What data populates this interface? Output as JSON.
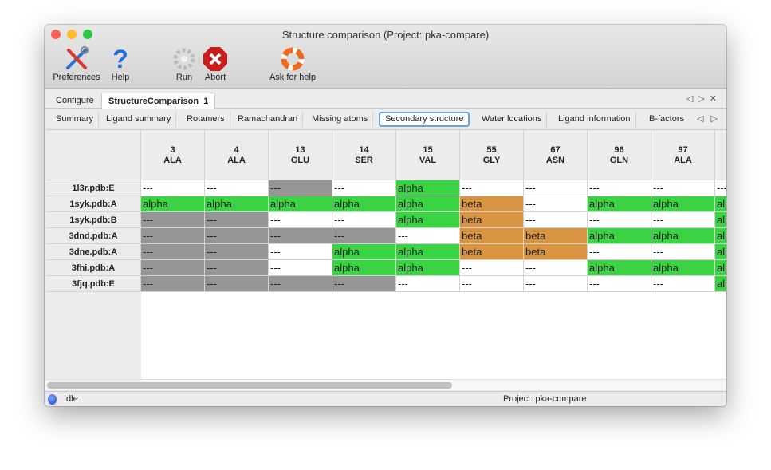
{
  "window": {
    "title": "Structure comparison (Project: pka-compare)"
  },
  "toolbar": {
    "preferences": "Preferences",
    "help": "Help",
    "run": "Run",
    "abort": "Abort",
    "ask_help": "Ask for help"
  },
  "tabs": [
    "Configure",
    "StructureComparison_1"
  ],
  "active_tab": "StructureComparison_1",
  "subtabs": [
    "Summary",
    "Ligand summary",
    "Rotamers",
    "Ramachandran",
    "Missing atoms",
    "Secondary structure",
    "Water locations",
    "Ligand information",
    "B-factors"
  ],
  "active_subtab": "Secondary structure",
  "colors": {
    "alpha": "#3ad344",
    "beta": "#d99441",
    "missing": "#959595",
    "blank": "#ffffff"
  },
  "table": {
    "columns": [
      {
        "num": "3",
        "res": "ALA"
      },
      {
        "num": "4",
        "res": "ALA"
      },
      {
        "num": "13",
        "res": "GLU"
      },
      {
        "num": "14",
        "res": "SER"
      },
      {
        "num": "15",
        "res": "VAL"
      },
      {
        "num": "55",
        "res": "GLY"
      },
      {
        "num": "67",
        "res": "ASN"
      },
      {
        "num": "96",
        "res": "GLN"
      },
      {
        "num": "97",
        "res": "ALA"
      },
      {
        "num": "",
        "res": ""
      }
    ],
    "rows": [
      {
        "label": "1l3r.pdb:E",
        "cells": [
          [
            "---",
            "blank"
          ],
          [
            "---",
            "blank"
          ],
          [
            "---",
            "missing"
          ],
          [
            "---",
            "blank"
          ],
          [
            "alpha",
            "alpha"
          ],
          [
            "---",
            "blank"
          ],
          [
            "---",
            "blank"
          ],
          [
            "---",
            "blank"
          ],
          [
            "---",
            "blank"
          ],
          [
            "---",
            "blank"
          ]
        ]
      },
      {
        "label": "1syk.pdb:A",
        "cells": [
          [
            "alpha",
            "alpha"
          ],
          [
            "alpha",
            "alpha"
          ],
          [
            "alpha",
            "alpha"
          ],
          [
            "alpha",
            "alpha"
          ],
          [
            "alpha",
            "alpha"
          ],
          [
            "beta",
            "beta"
          ],
          [
            "---",
            "blank"
          ],
          [
            "alpha",
            "alpha"
          ],
          [
            "alpha",
            "alpha"
          ],
          [
            "alpha",
            "alpha"
          ]
        ]
      },
      {
        "label": "1syk.pdb:B",
        "cells": [
          [
            "---",
            "missing"
          ],
          [
            "---",
            "missing"
          ],
          [
            "---",
            "blank"
          ],
          [
            "---",
            "blank"
          ],
          [
            "alpha",
            "alpha"
          ],
          [
            "beta",
            "beta"
          ],
          [
            "---",
            "blank"
          ],
          [
            "---",
            "blank"
          ],
          [
            "---",
            "blank"
          ],
          [
            "alpha",
            "alpha"
          ]
        ]
      },
      {
        "label": "3dnd.pdb:A",
        "cells": [
          [
            "---",
            "missing"
          ],
          [
            "---",
            "missing"
          ],
          [
            "---",
            "missing"
          ],
          [
            "---",
            "missing"
          ],
          [
            "---",
            "blank"
          ],
          [
            "beta",
            "beta"
          ],
          [
            "beta",
            "beta"
          ],
          [
            "alpha",
            "alpha"
          ],
          [
            "alpha",
            "alpha"
          ],
          [
            "alpha",
            "alpha"
          ]
        ]
      },
      {
        "label": "3dne.pdb:A",
        "cells": [
          [
            "---",
            "missing"
          ],
          [
            "---",
            "missing"
          ],
          [
            "---",
            "blank"
          ],
          [
            "alpha",
            "alpha"
          ],
          [
            "alpha",
            "alpha"
          ],
          [
            "beta",
            "beta"
          ],
          [
            "beta",
            "beta"
          ],
          [
            "---",
            "blank"
          ],
          [
            "---",
            "blank"
          ],
          [
            "alpha",
            "alpha"
          ]
        ]
      },
      {
        "label": "3fhi.pdb:A",
        "cells": [
          [
            "---",
            "missing"
          ],
          [
            "---",
            "missing"
          ],
          [
            "---",
            "blank"
          ],
          [
            "alpha",
            "alpha"
          ],
          [
            "alpha",
            "alpha"
          ],
          [
            "---",
            "blank"
          ],
          [
            "---",
            "blank"
          ],
          [
            "alpha",
            "alpha"
          ],
          [
            "alpha",
            "alpha"
          ],
          [
            "alpha",
            "alpha"
          ]
        ]
      },
      {
        "label": "3fjq.pdb:E",
        "cells": [
          [
            "---",
            "missing"
          ],
          [
            "---",
            "missing"
          ],
          [
            "---",
            "missing"
          ],
          [
            "---",
            "missing"
          ],
          [
            "---",
            "blank"
          ],
          [
            "---",
            "blank"
          ],
          [
            "---",
            "blank"
          ],
          [
            "---",
            "blank"
          ],
          [
            "---",
            "blank"
          ],
          [
            "alpha",
            "alpha"
          ]
        ]
      }
    ]
  },
  "status": {
    "state": "Idle",
    "project": "Project: pka-compare"
  }
}
